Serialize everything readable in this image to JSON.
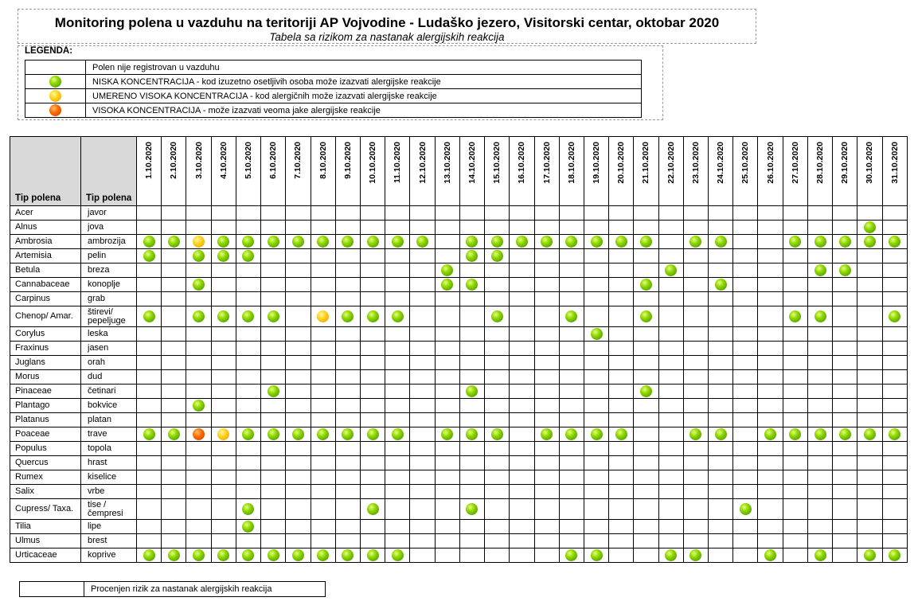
{
  "title": "Monitoring polena u vazduhu na teritoriji AP Vojvodine - Ludaško jezero, Visitorski centar, oktobar 2020",
  "subtitle": "Tabela sa rizikom za nastanak alergijskih reakcija",
  "legend": {
    "heading": "LEGENDA:",
    "items": [
      {
        "symbol": "none",
        "text": "Polen nije registrovan u vazduhu"
      },
      {
        "symbol": "green",
        "text": "NISKA KONCENTRACIJA - kod izuzetno osetljivih osoba može izazvati alergijske reakcije"
      },
      {
        "symbol": "yellow",
        "text": "UMERENO VISOKA KONCENTRACIJA - kod alergičnih može izazvati alergijske reakcije"
      },
      {
        "symbol": "orange",
        "text": "VISOKA KONCENTRACIJA - može izazvati veoma jake alergijske reakcije"
      }
    ]
  },
  "symbol_colors": {
    "green": "#6fc000",
    "yellow": "#ffd21f",
    "orange": "#ff6a00"
  },
  "table": {
    "col_latin": "Tip polena",
    "col_local": "Tip polena",
    "dates": [
      "1.10.2020",
      "2.10.2020",
      "3.10.2020",
      "4.10.2020",
      "5.10.2020",
      "6.10.2020",
      "7.10.2020",
      "8.10.2020",
      "9.10.2020",
      "10.10.2020",
      "11.10.2020",
      "12.10.2020",
      "13.10.2020",
      "14.10.2020",
      "15.10.2020",
      "16.10.2020",
      "17.10.2020",
      "18.10.2020",
      "19.10.2020",
      "20.10.2020",
      "21.10.2020",
      "22.10.2020",
      "23.10.2020",
      "24.10.2020",
      "25.10.2020",
      "26.10.2020",
      "27.10.2020",
      "28.10.2020",
      "29.10.2020",
      "30.10.2020",
      "31.10.2020"
    ],
    "rows": [
      {
        "latin": "Acer",
        "local": "javor",
        "cells": "...............................",
        "tall": false
      },
      {
        "latin": "Alnus",
        "local": "jova",
        "cells": ".............................G.",
        "tall": false
      },
      {
        "latin": "Ambrosia",
        "local": "ambrozija",
        "cells": "GGYGGGGGGGGG.GGGGGGGG.GG..GGGGG",
        "tall": false
      },
      {
        "latin": "Artemisia",
        "local": "pelin",
        "cells": "G.GGG........GG................",
        "tall": false
      },
      {
        "latin": "Betula",
        "local": "breza",
        "cells": "............G........G.....GG..",
        "tall": false
      },
      {
        "latin": "Cannabaceae",
        "local": "konoplje",
        "cells": "..G.........GG......G..G.......",
        "tall": false
      },
      {
        "latin": "Carpinus",
        "local": "grab",
        "cells": "...............................",
        "tall": false
      },
      {
        "latin": "Chenop/ Amar.",
        "local": "štirevi/ pepeljuge",
        "cells": "G.GGGG.YGGG...G..G..G.....GG..G",
        "tall": true
      },
      {
        "latin": "Corylus",
        "local": "leska",
        "cells": "..................G............",
        "tall": false
      },
      {
        "latin": "Fraxinus",
        "local": "jasen",
        "cells": "...............................",
        "tall": false
      },
      {
        "latin": "Juglans",
        "local": "orah",
        "cells": "...............................",
        "tall": false
      },
      {
        "latin": "Morus",
        "local": "dud",
        "cells": "...............................",
        "tall": false
      },
      {
        "latin": "Pinaceae",
        "local": "četinari",
        "cells": ".....G.......G......G..........",
        "tall": false
      },
      {
        "latin": "Plantago",
        "local": "bokvice",
        "cells": "..G............................",
        "tall": false
      },
      {
        "latin": "Platanus",
        "local": "platan",
        "cells": "...............................",
        "tall": false
      },
      {
        "latin": "Poaceae",
        "local": "trave",
        "cells": "GGOYGGGGGGG.GGG.GGGG..GG.GGGGGG",
        "tall": false
      },
      {
        "latin": "Populus",
        "local": "topola",
        "cells": "...............................",
        "tall": false
      },
      {
        "latin": "Quercus",
        "local": "hrast",
        "cells": "...............................",
        "tall": false
      },
      {
        "latin": "Rumex",
        "local": "kiselice",
        "cells": "...............................",
        "tall": false
      },
      {
        "latin": "Salix",
        "local": "vrbe",
        "cells": "...............................",
        "tall": false
      },
      {
        "latin": "Cupress/ Taxa.",
        "local": "tise / čempresi",
        "cells": "....G....G...G..........G......",
        "tall": true
      },
      {
        "latin": "Tilia",
        "local": "lipe",
        "cells": "....G..........................",
        "tall": false
      },
      {
        "latin": "Ulmus",
        "local": "brest",
        "cells": "...............................",
        "tall": false
      },
      {
        "latin": "Urticaceae",
        "local": "koprive",
        "cells": "GGGGGGGGGGG......GG..GG..G.G.GG",
        "tall": false
      }
    ]
  },
  "footer": {
    "text": "Procenjen rizik za nastanak alergijskih reakcija"
  }
}
